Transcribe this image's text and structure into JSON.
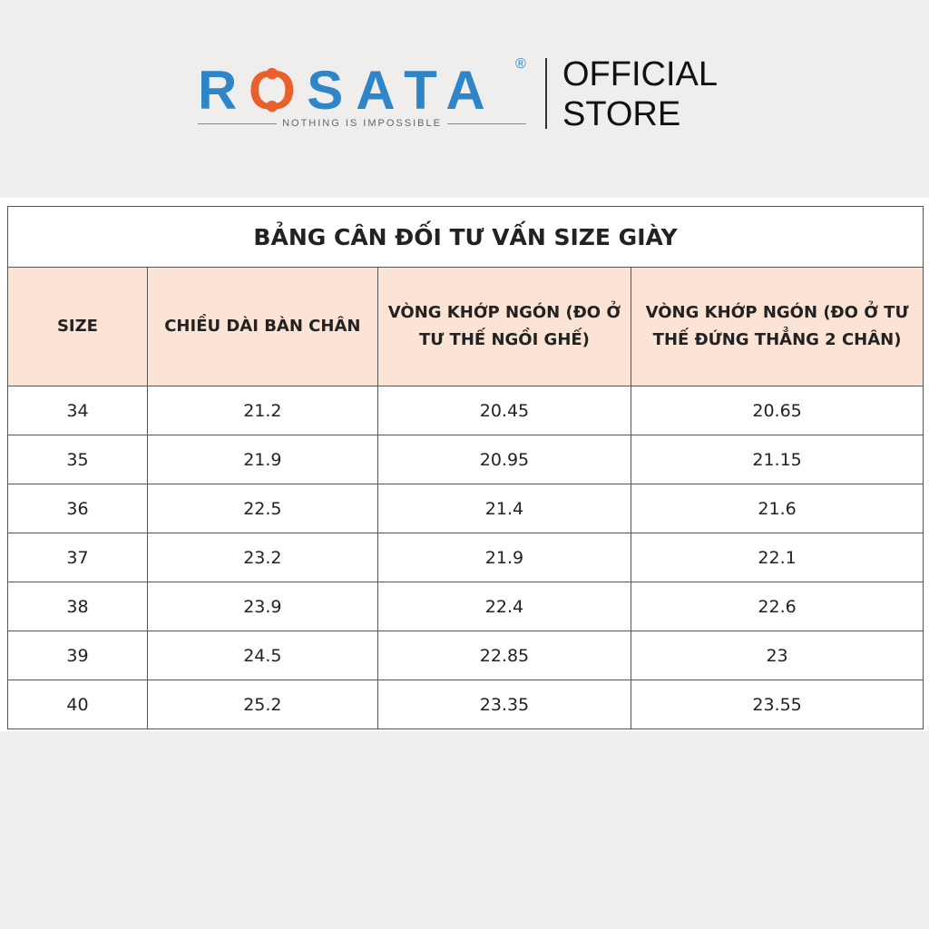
{
  "logo": {
    "brand": "ROSATA",
    "tagline": "NOTHING IS IMPOSSIBLE",
    "registered": "®",
    "store_line1": "OFFICIAL",
    "store_line2": "STORE",
    "colors": {
      "brand_blue": "#2e86c9",
      "accent_orange": "#e8602c"
    }
  },
  "table": {
    "title": "BẢNG CÂN ĐỐI TƯ VẤN SIZE GIÀY",
    "header_color": "#fbe3d6",
    "columns": [
      "SIZE",
      "CHIỀU DÀI BÀN CHÂN",
      "VÒNG KHỚP NGÓN (ĐO Ở TƯ THẾ NGỒI GHẾ)",
      "VÒNG KHỚP NGÓN (ĐO Ở TƯ THẾ ĐỨNG THẲNG 2 CHÂN)"
    ],
    "rows": [
      [
        "34",
        "21.2",
        "20.45",
        "20.65"
      ],
      [
        "35",
        "21.9",
        "20.95",
        "21.15"
      ],
      [
        "36",
        "22.5",
        "21.4",
        "21.6"
      ],
      [
        "37",
        "23.2",
        "21.9",
        "22.1"
      ],
      [
        "38",
        "23.9",
        "22.4",
        "22.6"
      ],
      [
        "39",
        "24.5",
        "22.85",
        "23"
      ],
      [
        "40",
        "25.2",
        "23.35",
        "23.55"
      ]
    ]
  }
}
